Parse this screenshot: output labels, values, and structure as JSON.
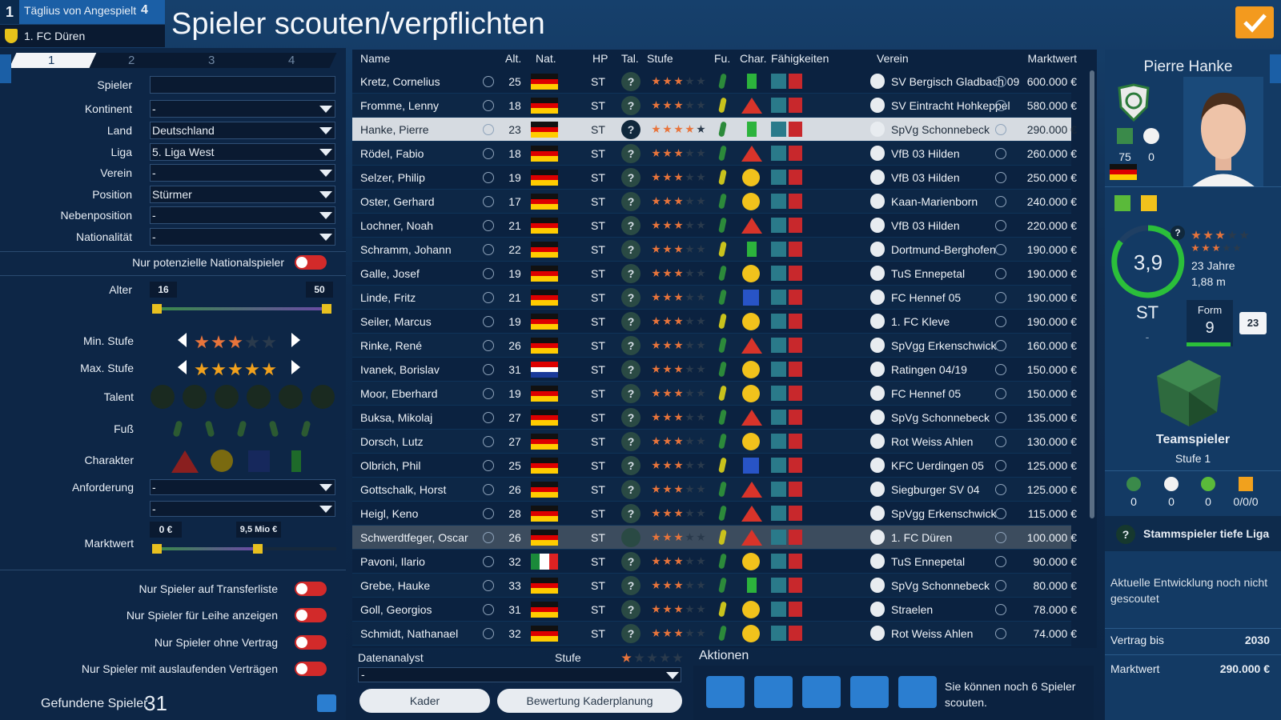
{
  "header": {
    "rank": "1",
    "news": "Täglius von Angespielt",
    "news_count": "4",
    "club": "1. FC Düren",
    "title": "Spieler scouten/verpflichten"
  },
  "filters": {
    "tabs": [
      "1",
      "2",
      "3",
      "4"
    ],
    "fields": [
      {
        "label": "Spieler"
      },
      {
        "label": "Kontinent",
        "value": "-"
      },
      {
        "label": "Land",
        "value": "Deutschland"
      },
      {
        "label": "Liga",
        "value": "5. Liga West"
      },
      {
        "label": "Verein",
        "value": "-"
      },
      {
        "label": "Position",
        "value": "Stürmer"
      },
      {
        "label": "Nebenposition",
        "value": "-"
      },
      {
        "label": "Nationalität",
        "value": "-"
      }
    ],
    "national_only": "Nur potenzielle Nationalspieler",
    "age": {
      "label": "Alter",
      "min": 16,
      "max": 50
    },
    "min_level": "Min. Stufe",
    "max_level": "Max. Stufe",
    "talent": "Talent",
    "foot": "Fuß",
    "character": "Charakter",
    "requirement": {
      "label": "Anforderung",
      "values": [
        "-",
        "-"
      ]
    },
    "market_value": {
      "label": "Marktwert",
      "min": "0 €",
      "max": "9,5 Mio €"
    },
    "toggles": [
      "Nur Spieler auf Transferliste",
      "Nur Spieler für Leihe anzeigen",
      "Nur Spieler ohne Vertrag",
      "Nur Spieler mit auslaufenden Verträgen"
    ],
    "found": {
      "label": "Gefundene Spieler",
      "count": 31
    }
  },
  "table": {
    "columns": [
      "Name",
      "Alt.",
      "Nat.",
      "HP",
      "Tal.",
      "Stufe",
      "Fu.",
      "Char.",
      "Fähigkeiten",
      "Verein",
      "Marktwert"
    ],
    "unknown": "?",
    "rows": [
      {
        "name": "Kretz, Cornelius",
        "age": 25,
        "nat": "de",
        "pos": "ST",
        "char": "bar",
        "club": "SV Bergisch Gladbach 09",
        "value": "600.000 €"
      },
      {
        "name": "Fromme, Lenny",
        "age": 18,
        "nat": "de",
        "pos": "ST",
        "char": "triangle",
        "club": "SV Eintracht Hohkeppel",
        "value": "580.000 €"
      },
      {
        "name": "Hanke, Pierre",
        "age": 23,
        "nat": "de",
        "pos": "ST",
        "char": "bar",
        "club": "SpVg Schonnebeck",
        "value": "290.000 €",
        "selected": true
      },
      {
        "name": "Rödel, Fabio",
        "age": 18,
        "nat": "de",
        "pos": "ST",
        "char": "triangle",
        "club": "VfB 03 Hilden",
        "value": "260.000 €"
      },
      {
        "name": "Selzer, Philip",
        "age": 19,
        "nat": "de",
        "pos": "ST",
        "char": "circle",
        "club": "VfB 03 Hilden",
        "value": "250.000 €"
      },
      {
        "name": "Oster, Gerhard",
        "age": 17,
        "nat": "de",
        "pos": "ST",
        "char": "circle",
        "club": "Kaan-Marienborn",
        "value": "240.000 €"
      },
      {
        "name": "Lochner, Noah",
        "age": 21,
        "nat": "de",
        "pos": "ST",
        "char": "triangle",
        "club": "VfB 03 Hilden",
        "value": "220.000 €"
      },
      {
        "name": "Schramm, Johann",
        "age": 22,
        "nat": "de",
        "pos": "ST",
        "char": "bar",
        "club": "Dortmund-Berghofen",
        "value": "190.000 €"
      },
      {
        "name": "Galle, Josef",
        "age": 19,
        "nat": "de",
        "pos": "ST",
        "char": "circle",
        "club": "TuS Ennepetal",
        "value": "190.000 €"
      },
      {
        "name": "Linde, Fritz",
        "age": 21,
        "nat": "de",
        "pos": "ST",
        "char": "square",
        "club": "FC Hennef 05",
        "value": "190.000 €"
      },
      {
        "name": "Seiler, Marcus",
        "age": 19,
        "nat": "de",
        "pos": "ST",
        "char": "circle",
        "club": "1. FC Kleve",
        "value": "190.000 €"
      },
      {
        "name": "Rinke, René",
        "age": 26,
        "nat": "de",
        "pos": "ST",
        "char": "triangle",
        "club": "SpVgg Erkenschwick",
        "value": "160.000 €"
      },
      {
        "name": "Ivanek, Borislav",
        "age": 31,
        "nat": "hr",
        "pos": "ST",
        "char": "circle",
        "club": "Ratingen 04/19",
        "value": "150.000 €"
      },
      {
        "name": "Moor, Eberhard",
        "age": 19,
        "nat": "de",
        "pos": "ST",
        "char": "circle",
        "club": "FC Hennef 05",
        "value": "150.000 €"
      },
      {
        "name": "Buksa, Mikolaj",
        "age": 27,
        "nat": "de",
        "pos": "ST",
        "char": "triangle",
        "club": "SpVg Schonnebeck",
        "value": "135.000 €"
      },
      {
        "name": "Dorsch, Lutz",
        "age": 27,
        "nat": "de",
        "pos": "ST",
        "char": "circle",
        "club": "Rot Weiss Ahlen",
        "value": "130.000 €"
      },
      {
        "name": "Olbrich, Phil",
        "age": 25,
        "nat": "de",
        "pos": "ST",
        "char": "square",
        "club": "KFC Uerdingen 05",
        "value": "125.000 €"
      },
      {
        "name": "Gottschalk, Horst",
        "age": 26,
        "nat": "de",
        "pos": "ST",
        "char": "triangle",
        "club": "Siegburger SV 04",
        "value": "125.000 €"
      },
      {
        "name": "Heigl, Keno",
        "age": 28,
        "nat": "de",
        "pos": "ST",
        "char": "triangle",
        "club": "SpVgg Erkenschwick",
        "value": "115.000 €"
      },
      {
        "name": "Schwerdtfeger, Oscar",
        "age": 26,
        "nat": "de",
        "pos": "ST",
        "char": "triangle",
        "club": "1. FC Düren",
        "value": "100.000 €",
        "own": true
      },
      {
        "name": "Pavoni, Ilario",
        "age": 32,
        "nat": "it",
        "pos": "ST",
        "char": "circle",
        "club": "TuS Ennepetal",
        "value": "90.000 €"
      },
      {
        "name": "Grebe, Hauke",
        "age": 33,
        "nat": "de",
        "pos": "ST",
        "char": "bar",
        "club": "SpVg Schonnebeck",
        "value": "80.000 €"
      },
      {
        "name": "Goll, Georgios",
        "age": 31,
        "nat": "de",
        "pos": "ST",
        "char": "circle",
        "club": "Straelen",
        "value": "78.000 €"
      },
      {
        "name": "Schmidt, Nathanael",
        "age": 32,
        "nat": "de",
        "pos": "ST",
        "char": "circle",
        "club": "Rot Weiss Ahlen",
        "value": "74.000 €"
      }
    ]
  },
  "footer": {
    "analyst": "Datenanalyst",
    "level": "Stufe",
    "analyst_value": "-",
    "buttons": [
      "Kader",
      "Bewertung Kaderplanung"
    ],
    "actions": "Aktionen",
    "message": "Sie können noch 6 Spieler scouten."
  },
  "profile": {
    "name": "Pierre Hanke",
    "stats": [
      75,
      0
    ],
    "rating": "3,9",
    "age": "23 Jahre",
    "height": "1,88 m",
    "position": "ST",
    "position_sub": "-",
    "form_label": "Form",
    "form": 9,
    "shirt": 23,
    "trait": "Teamspieler",
    "trait_level": "Stufe 1",
    "counts": [
      0,
      0,
      0,
      "0/0/0"
    ],
    "role": "Stammspieler tiefe Liga",
    "note": "Aktuelle Entwicklung noch nicht gescoutet",
    "contract": {
      "label": "Vertrag bis",
      "value": 2030
    },
    "market": {
      "label": "Marktwert",
      "value": "290.000 €"
    }
  }
}
